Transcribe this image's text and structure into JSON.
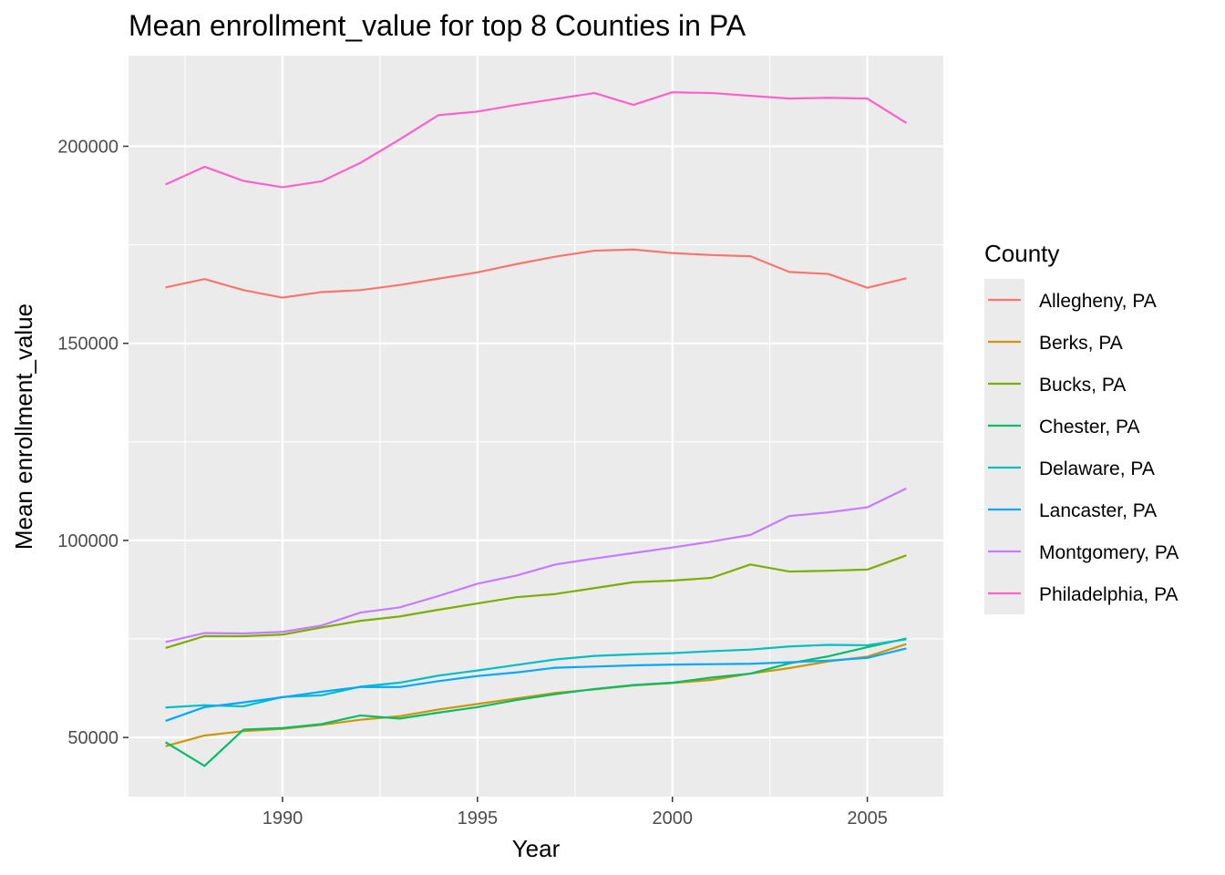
{
  "chart_data": {
    "type": "line",
    "title": "Mean enrollment_value for top 8 Counties in PA",
    "xlabel": "Year",
    "ylabel": "Mean enrollment_value",
    "x": [
      1987,
      1988,
      1989,
      1990,
      1991,
      1992,
      1993,
      1994,
      1995,
      1996,
      1997,
      1998,
      1999,
      2000,
      2001,
      2002,
      2003,
      2004,
      2005,
      2006
    ],
    "xlim": [
      1986.05,
      2006.95
    ],
    "ylim": [
      35000,
      223000
    ],
    "x_ticks": [
      1990,
      1995,
      2000,
      2005
    ],
    "x_tick_labels": [
      "1990",
      "1995",
      "2000",
      "2005"
    ],
    "y_ticks": [
      50000,
      100000,
      150000,
      200000
    ],
    "y_tick_labels": [
      "50000",
      "100000",
      "150000",
      "200000"
    ],
    "grid": true,
    "legend": {
      "title": "County",
      "position": "right"
    },
    "series": [
      {
        "name": "Allegheny, PA",
        "color": "#F8766D",
        "values": [
          164200,
          166300,
          163500,
          161600,
          163000,
          163500,
          164800,
          166400,
          168000,
          170100,
          172000,
          173500,
          173800,
          172900,
          172400,
          172100,
          168100,
          167600,
          164100,
          166500
        ]
      },
      {
        "name": "Berks, PA",
        "color": "#CD9600",
        "values": [
          47800,
          50500,
          51600,
          52200,
          53200,
          54500,
          55400,
          57100,
          58500,
          59900,
          61300,
          62200,
          63200,
          63800,
          64600,
          66200,
          67600,
          69300,
          70500,
          73700
        ]
      },
      {
        "name": "Bucks, PA",
        "color": "#7CAE00",
        "values": [
          72700,
          75700,
          75700,
          76100,
          77900,
          79600,
          80700,
          82400,
          84000,
          85600,
          86400,
          87900,
          89400,
          89800,
          90500,
          93900,
          92100,
          92300,
          92600,
          96200
        ]
      },
      {
        "name": "Chester, PA",
        "color": "#00BE67",
        "values": [
          48800,
          42800,
          52000,
          52400,
          53400,
          55600,
          54800,
          56300,
          57700,
          59500,
          61000,
          62300,
          63300,
          63900,
          65200,
          66200,
          68800,
          70600,
          72900,
          75100
        ]
      },
      {
        "name": "Delaware, PA",
        "color": "#00BFC4",
        "values": [
          57600,
          58200,
          57900,
          60300,
          60700,
          62900,
          63900,
          65700,
          67000,
          68400,
          69800,
          70700,
          71100,
          71400,
          71900,
          72300,
          73100,
          73500,
          73400,
          74900
        ]
      },
      {
        "name": "Lancaster, PA",
        "color": "#00A9FF",
        "values": [
          54200,
          57700,
          58900,
          60200,
          61600,
          62800,
          62800,
          64300,
          65600,
          66500,
          67700,
          68000,
          68300,
          68500,
          68600,
          68700,
          69100,
          69500,
          70200,
          72600
        ]
      },
      {
        "name": "Montgomery, PA",
        "color": "#C77CFF",
        "values": [
          74200,
          76500,
          76400,
          76800,
          78400,
          81700,
          83000,
          85900,
          89000,
          91100,
          93900,
          95400,
          96800,
          98200,
          99700,
          101400,
          106200,
          107100,
          108400,
          113200
        ]
      },
      {
        "name": "Philadelphia, PA",
        "color": "#FF61CC",
        "values": [
          190300,
          194800,
          191200,
          189600,
          191100,
          195800,
          201700,
          207900,
          208800,
          210500,
          212000,
          213500,
          210500,
          213700,
          213500,
          212800,
          212100,
          212300,
          212100,
          205900
        ]
      }
    ]
  }
}
